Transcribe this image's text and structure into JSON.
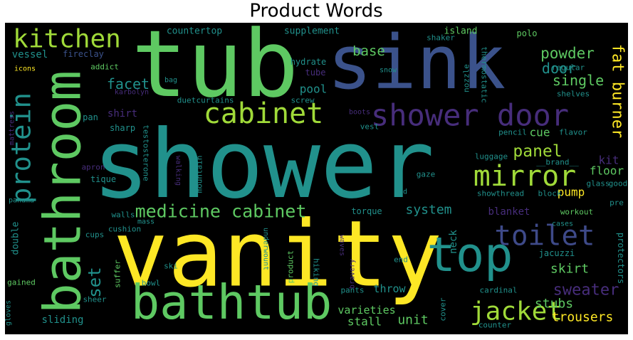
{
  "chart_data": {
    "type": "wordcloud",
    "title": "Product Words",
    "background": "#000000",
    "words": [
      {
        "text": "shower",
        "color": "#21918c"
      },
      {
        "text": "vanity",
        "color": "#fde725"
      },
      {
        "text": "tub",
        "color": "#5ec962"
      },
      {
        "text": "sink",
        "color": "#3b528b"
      },
      {
        "text": "bathroom",
        "color": "#5ec962"
      },
      {
        "text": "bathtub",
        "color": "#5ec962"
      },
      {
        "text": "top",
        "color": "#21918c"
      },
      {
        "text": "shower door",
        "color": "#472d7b"
      },
      {
        "text": "cabinet",
        "color": "#a0da39"
      },
      {
        "text": "kitchen",
        "color": "#a0da39"
      },
      {
        "text": "mirror",
        "color": "#a0da39"
      },
      {
        "text": "toilet",
        "color": "#3e4a89"
      },
      {
        "text": "jacket",
        "color": "#a0da39"
      },
      {
        "text": "protein",
        "color": "#21918c"
      },
      {
        "text": "medicine cabinet",
        "color": "#5ec962"
      },
      {
        "text": "set",
        "color": "#21918c"
      },
      {
        "text": "panel",
        "color": "#a0da39"
      },
      {
        "text": "fat burner",
        "color": "#fde725"
      },
      {
        "text": "sweater",
        "color": "#472d7b"
      },
      {
        "text": "powder",
        "color": "#5ec962"
      },
      {
        "text": "door",
        "color": "#21918c"
      },
      {
        "text": "single",
        "color": "#5ec962"
      },
      {
        "text": "facet",
        "color": "#21918c"
      },
      {
        "text": "base",
        "color": "#5ec962"
      },
      {
        "text": "system",
        "color": "#21918c"
      },
      {
        "text": "unit",
        "color": "#5ec962"
      },
      {
        "text": "stubs",
        "color": "#5ec962"
      },
      {
        "text": "trousers",
        "color": "#fde725"
      },
      {
        "text": "skirt",
        "color": "#5ec962"
      },
      {
        "text": "throw",
        "color": "#21918c"
      },
      {
        "text": "varieties",
        "color": "#5ec962"
      },
      {
        "text": "stall",
        "color": "#5ec962"
      },
      {
        "text": "pump",
        "color": "#fde725"
      },
      {
        "text": "floor",
        "color": "#5ec962"
      },
      {
        "text": "kit",
        "color": "#472d7b"
      },
      {
        "text": "cue",
        "color": "#5ec962"
      },
      {
        "text": "neck",
        "color": "#21918c"
      },
      {
        "text": "blanket",
        "color": "#472d7b"
      },
      {
        "text": "pool",
        "color": "#21918c"
      },
      {
        "text": "countertop",
        "color": "#21918c"
      },
      {
        "text": "supplement",
        "color": "#21918c"
      },
      {
        "text": "island",
        "color": "#5ec962"
      },
      {
        "text": "vessel",
        "color": "#21918c"
      },
      {
        "text": "fireclay",
        "color": "#3b528b"
      },
      {
        "text": "addict",
        "color": "#5ec962"
      },
      {
        "text": "icons",
        "color": "#fde725"
      },
      {
        "text": "shirt",
        "color": "#472d7b"
      },
      {
        "text": "sharp",
        "color": "#21918c"
      },
      {
        "text": "pan",
        "color": "#21918c"
      },
      {
        "text": "apron",
        "color": "#472d7b"
      },
      {
        "text": "tique",
        "color": "#21918c"
      },
      {
        "text": "walls",
        "color": "#21918c"
      },
      {
        "text": "cushion",
        "color": "#21918c"
      },
      {
        "text": "mass",
        "color": "#21918c"
      },
      {
        "text": "cups",
        "color": "#21918c"
      },
      {
        "text": "double",
        "color": "#21918c"
      },
      {
        "text": "gained",
        "color": "#5ec962"
      },
      {
        "text": "bowl",
        "color": "#21918c"
      },
      {
        "text": "sheer",
        "color": "#21918c"
      },
      {
        "text": "sliding",
        "color": "#21918c"
      },
      {
        "text": "suffer",
        "color": "#5ec962"
      },
      {
        "text": "curtains",
        "color": "#21918c"
      },
      {
        "text": "duet",
        "color": "#21918c"
      },
      {
        "text": "screw",
        "color": "#21918c"
      },
      {
        "text": "hydrate",
        "color": "#21918c"
      },
      {
        "text": "tube",
        "color": "#472d7b"
      },
      {
        "text": "shaker",
        "color": "#21918c"
      },
      {
        "text": "polo",
        "color": "#5ec962"
      },
      {
        "text": "regular",
        "color": "#21918c"
      },
      {
        "text": "thermostatic",
        "color": "#21918c"
      },
      {
        "text": "nozzle",
        "color": "#21918c"
      },
      {
        "text": "snow",
        "color": "#21918c"
      },
      {
        "text": "boots",
        "color": "#472d7b"
      },
      {
        "text": "vest",
        "color": "#21918c"
      },
      {
        "text": "shelves",
        "color": "#21918c"
      },
      {
        "text": "pencil",
        "color": "#21918c"
      },
      {
        "text": "flavor",
        "color": "#21918c"
      },
      {
        "text": "luggage",
        "color": "#21918c"
      },
      {
        "text": "__brand__",
        "color": "#21918c"
      },
      {
        "text": "glass",
        "color": "#21918c"
      },
      {
        "text": "good",
        "color": "#21918c"
      },
      {
        "text": "showthread",
        "color": "#21918c"
      },
      {
        "text": "block",
        "color": "#21918c"
      },
      {
        "text": "workout",
        "color": "#5ec962"
      },
      {
        "text": "pre",
        "color": "#21918c"
      },
      {
        "text": "cases",
        "color": "#21918c"
      },
      {
        "text": "protectors",
        "color": "#21918c"
      },
      {
        "text": "jacuzzi",
        "color": "#21918c"
      },
      {
        "text": "cardinal",
        "color": "#21918c"
      },
      {
        "text": "counter",
        "color": "#21918c"
      },
      {
        "text": "cover",
        "color": "#21918c"
      },
      {
        "text": "end",
        "color": "#21918c"
      },
      {
        "text": "ed",
        "color": "#21918c"
      },
      {
        "text": "gaze",
        "color": "#21918c"
      },
      {
        "text": "torque",
        "color": "#21918c"
      },
      {
        "text": "hiking",
        "color": "#21918c"
      },
      {
        "text": "product",
        "color": "#5ec962"
      },
      {
        "text": "underwount",
        "color": "#21918c"
      },
      {
        "text": "ski",
        "color": "#21918c"
      },
      {
        "text": "pants",
        "color": "#21918c"
      },
      {
        "text": "testosterone",
        "color": "#21918c"
      },
      {
        "text": "mountain",
        "color": "#21918c"
      },
      {
        "text": "walking",
        "color": "#472d7b"
      },
      {
        "text": "karbolyn",
        "color": "#472d7b"
      },
      {
        "text": "mattress",
        "color": "#472d7b"
      },
      {
        "text": "panama",
        "color": "#21918c"
      },
      {
        "text": "bag",
        "color": "#21918c"
      },
      {
        "text": "gloves",
        "color": "#21918c"
      },
      {
        "text": "bravery",
        "color": "#472d7b"
      },
      {
        "text": "waves",
        "color": "#472d7b"
      }
    ]
  }
}
